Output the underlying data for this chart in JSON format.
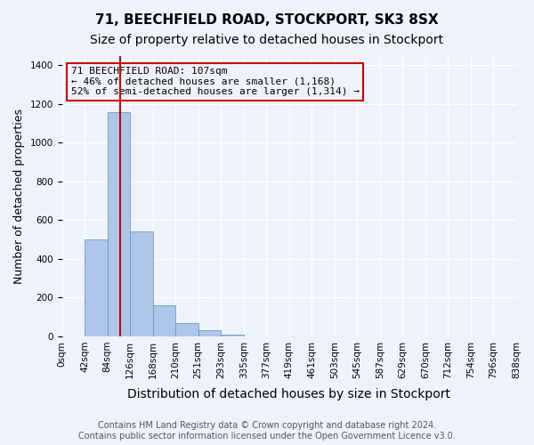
{
  "title": "71, BEECHFIELD ROAD, STOCKPORT, SK3 8SX",
  "subtitle": "Size of property relative to detached houses in Stockport",
  "xlabel": "Distribution of detached houses by size in Stockport",
  "ylabel": "Number of detached properties",
  "footer_line1": "Contains HM Land Registry data © Crown copyright and database right 2024.",
  "footer_line2": "Contains public sector information licensed under the Open Government Licence v3.0.",
  "bin_labels": [
    "0sqm",
    "42sqm",
    "84sqm",
    "126sqm",
    "168sqm",
    "210sqm",
    "251sqm",
    "293sqm",
    "335sqm",
    "377sqm",
    "419sqm",
    "461sqm",
    "503sqm",
    "545sqm",
    "587sqm",
    "629sqm",
    "670sqm",
    "712sqm",
    "754sqm",
    "796sqm",
    "838sqm"
  ],
  "bar_values": [
    0,
    500,
    1160,
    540,
    160,
    70,
    30,
    10,
    0,
    0,
    0,
    0,
    0,
    0,
    0,
    0,
    0,
    0,
    0,
    0
  ],
  "bar_color": "#aec6e8",
  "bar_edge_color": "#5a8fc0",
  "property_line_x": 2.55,
  "annotation_text_line1": "71 BEECHFIELD ROAD: 107sqm",
  "annotation_text_line2": "← 46% of detached houses are smaller (1,168)",
  "annotation_text_line3": "52% of semi-detached houses are larger (1,314) →",
  "red_line_color": "#cc0000",
  "annotation_border_color": "#cc0000",
  "ylim": [
    0,
    1450
  ],
  "yticks": [
    0,
    200,
    400,
    600,
    800,
    1000,
    1200,
    1400
  ],
  "background_color": "#eef3fb",
  "grid_color": "#ffffff",
  "title_fontsize": 11,
  "subtitle_fontsize": 10,
  "xlabel_fontsize": 10,
  "ylabel_fontsize": 9,
  "tick_fontsize": 7.5,
  "annotation_fontsize": 8,
  "footer_fontsize": 7
}
